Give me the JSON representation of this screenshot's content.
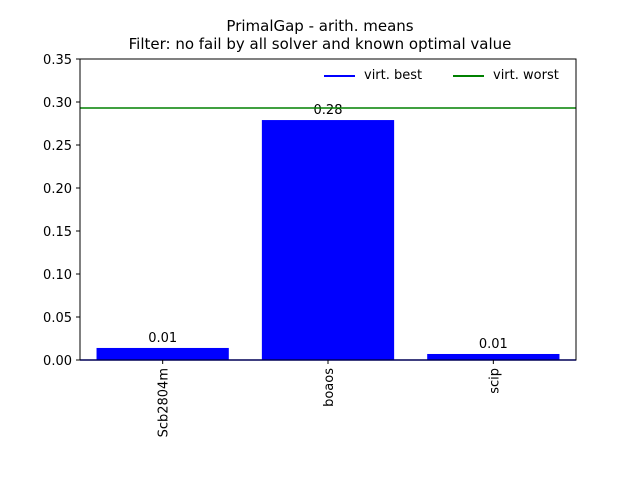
{
  "chart_data": {
    "type": "bar",
    "title": "PrimalGap - arith. means",
    "subtitle": "Filter: no fail by all solver and known optimal value",
    "categories": [
      "Scb2804m",
      "boaos",
      "scip"
    ],
    "values": [
      0.014,
      0.279,
      0.007
    ],
    "data_labels": [
      "0.01",
      "0.28",
      "0.01"
    ],
    "bar_color": "#0000ff",
    "ylim": [
      0,
      0.35
    ],
    "yticks": [
      0.0,
      0.05,
      0.1,
      0.15,
      0.2,
      0.25,
      0.3,
      0.35
    ],
    "ytick_labels": [
      "0.00",
      "0.05",
      "0.10",
      "0.15",
      "0.20",
      "0.25",
      "0.30",
      "0.35"
    ],
    "xtick_rotation": "vertical",
    "reference_lines": [
      {
        "name": "virt. best",
        "value": 0.0,
        "color": "#0000ff"
      },
      {
        "name": "virt. worst",
        "value": 0.293,
        "color": "#008000"
      }
    ],
    "legend": {
      "placement": "upper-right",
      "frame": false,
      "columns": 2
    },
    "grid": false
  }
}
